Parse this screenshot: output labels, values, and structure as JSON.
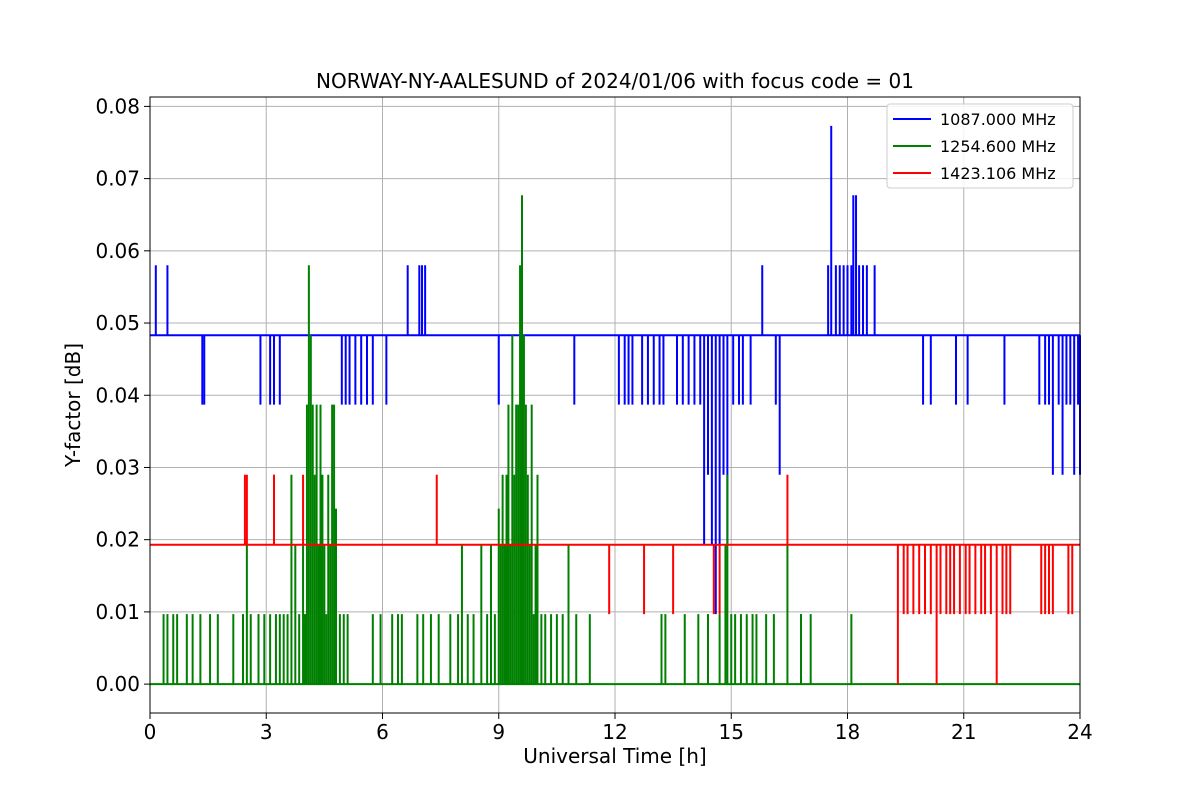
{
  "chart_data": {
    "type": "line",
    "title": "NORWAY-NY-AALESUND of 2024/01/06 with focus code = 01",
    "xlabel": "Universal Time [h]",
    "ylabel": "Y-factor [dB]",
    "xlim": [
      0,
      24
    ],
    "ylim": [
      -0.004,
      0.0813
    ],
    "xticks": [
      0,
      3,
      6,
      9,
      12,
      15,
      18,
      21,
      24
    ],
    "xtick_labels": [
      "0",
      "3",
      "6",
      "9",
      "12",
      "15",
      "18",
      "21",
      "24"
    ],
    "yticks": [
      0.0,
      0.01,
      0.02,
      0.03,
      0.04,
      0.05,
      0.06,
      0.07,
      0.08
    ],
    "ytick_labels": [
      "0.00",
      "0.01",
      "0.02",
      "0.03",
      "0.04",
      "0.05",
      "0.06",
      "0.07",
      "0.08"
    ],
    "grid": true,
    "legend_position": "top-right",
    "series": [
      {
        "name": "1087.000 MHz",
        "color": "#0000ff",
        "baseline": 0.0483,
        "spikes": [
          [
            0.15,
            0.058
          ],
          [
            0.45,
            0.058
          ],
          [
            1.35,
            0.0387
          ],
          [
            1.4,
            0.0387
          ],
          [
            2.85,
            0.0387
          ],
          [
            3.1,
            0.0387
          ],
          [
            3.2,
            0.0387
          ],
          [
            3.35,
            0.0387
          ],
          [
            4.95,
            0.0387
          ],
          [
            5.05,
            0.0387
          ],
          [
            5.15,
            0.0387
          ],
          [
            5.3,
            0.0387
          ],
          [
            5.45,
            0.0387
          ],
          [
            5.6,
            0.0387
          ],
          [
            5.75,
            0.0387
          ],
          [
            6.1,
            0.0387
          ],
          [
            6.65,
            0.058
          ],
          [
            6.95,
            0.058
          ],
          [
            7.02,
            0.058
          ],
          [
            7.1,
            0.058
          ],
          [
            9.0,
            0.0387
          ],
          [
            10.95,
            0.0387
          ],
          [
            12.1,
            0.0387
          ],
          [
            12.25,
            0.0387
          ],
          [
            12.35,
            0.0387
          ],
          [
            12.45,
            0.0387
          ],
          [
            12.7,
            0.0387
          ],
          [
            12.85,
            0.0387
          ],
          [
            13.0,
            0.0387
          ],
          [
            13.15,
            0.0387
          ],
          [
            13.25,
            0.0387
          ],
          [
            13.6,
            0.0387
          ],
          [
            13.75,
            0.0387
          ],
          [
            13.9,
            0.0387
          ],
          [
            14.05,
            0.0387
          ],
          [
            14.2,
            0.0387
          ],
          [
            14.3,
            0.0193
          ],
          [
            14.4,
            0.029
          ],
          [
            14.5,
            0.0193
          ],
          [
            14.6,
            0.0097
          ],
          [
            14.7,
            0.0193
          ],
          [
            14.8,
            0.029
          ],
          [
            14.9,
            0.0193
          ],
          [
            15.05,
            0.0387
          ],
          [
            15.2,
            0.0387
          ],
          [
            15.3,
            0.0387
          ],
          [
            15.5,
            0.0387
          ],
          [
            15.8,
            0.058
          ],
          [
            16.15,
            0.0387
          ],
          [
            16.25,
            0.029
          ],
          [
            17.5,
            0.058
          ],
          [
            17.58,
            0.0773
          ],
          [
            17.7,
            0.058
          ],
          [
            17.8,
            0.058
          ],
          [
            17.9,
            0.058
          ],
          [
            18.0,
            0.058
          ],
          [
            18.1,
            0.058
          ],
          [
            18.15,
            0.0677
          ],
          [
            18.22,
            0.0677
          ],
          [
            18.3,
            0.058
          ],
          [
            18.4,
            0.058
          ],
          [
            18.5,
            0.058
          ],
          [
            18.7,
            0.058
          ],
          [
            19.95,
            0.0387
          ],
          [
            20.15,
            0.0387
          ],
          [
            20.8,
            0.0387
          ],
          [
            21.1,
            0.0387
          ],
          [
            22.05,
            0.0387
          ],
          [
            22.95,
            0.0387
          ],
          [
            23.1,
            0.0387
          ],
          [
            23.2,
            0.0387
          ],
          [
            23.3,
            0.029
          ],
          [
            23.45,
            0.0387
          ],
          [
            23.55,
            0.029
          ],
          [
            23.65,
            0.0387
          ],
          [
            23.75,
            0.0387
          ],
          [
            23.85,
            0.029
          ],
          [
            23.95,
            0.0387
          ],
          [
            24.0,
            0.029
          ]
        ]
      },
      {
        "name": "1254.600 MHz",
        "color": "#008000",
        "baseline": 0.0,
        "spikes": [
          [
            0.35,
            0.0097
          ],
          [
            0.45,
            0.0097
          ],
          [
            0.6,
            0.0097
          ],
          [
            0.7,
            0.0097
          ],
          [
            0.95,
            0.0097
          ],
          [
            1.1,
            0.0097
          ],
          [
            1.3,
            0.0097
          ],
          [
            1.55,
            0.0097
          ],
          [
            1.75,
            0.0097
          ],
          [
            2.15,
            0.0097
          ],
          [
            2.4,
            0.0097
          ],
          [
            2.5,
            0.0193
          ],
          [
            2.6,
            0.0097
          ],
          [
            2.8,
            0.0097
          ],
          [
            2.95,
            0.0097
          ],
          [
            3.1,
            0.0097
          ],
          [
            3.25,
            0.0097
          ],
          [
            3.35,
            0.0097
          ],
          [
            3.45,
            0.0097
          ],
          [
            3.55,
            0.0097
          ],
          [
            3.65,
            0.029
          ],
          [
            3.75,
            0.0193
          ],
          [
            3.85,
            0.0097
          ],
          [
            3.95,
            0.0193
          ],
          [
            4.0,
            0.0097
          ],
          [
            4.05,
            0.0387
          ],
          [
            4.1,
            0.058
          ],
          [
            4.15,
            0.0483
          ],
          [
            4.2,
            0.0387
          ],
          [
            4.25,
            0.029
          ],
          [
            4.3,
            0.0387
          ],
          [
            4.35,
            0.0193
          ],
          [
            4.4,
            0.0387
          ],
          [
            4.45,
            0.029
          ],
          [
            4.5,
            0.0193
          ],
          [
            4.55,
            0.0097
          ],
          [
            4.6,
            0.029
          ],
          [
            4.65,
            0.0193
          ],
          [
            4.7,
            0.0387
          ],
          [
            4.75,
            0.0387
          ],
          [
            4.8,
            0.0243
          ],
          [
            4.9,
            0.0097
          ],
          [
            5.0,
            0.0097
          ],
          [
            5.1,
            0.0097
          ],
          [
            5.75,
            0.0097
          ],
          [
            5.95,
            0.0097
          ],
          [
            6.25,
            0.0097
          ],
          [
            6.4,
            0.0097
          ],
          [
            6.5,
            0.0097
          ],
          [
            6.9,
            0.0097
          ],
          [
            7.05,
            0.0097
          ],
          [
            7.25,
            0.0097
          ],
          [
            7.45,
            0.0097
          ],
          [
            7.75,
            0.0097
          ],
          [
            7.95,
            0.0097
          ],
          [
            8.05,
            0.0193
          ],
          [
            8.2,
            0.0097
          ],
          [
            8.35,
            0.0097
          ],
          [
            8.55,
            0.0193
          ],
          [
            8.7,
            0.0097
          ],
          [
            8.8,
            0.0193
          ],
          [
            8.9,
            0.0097
          ],
          [
            9.0,
            0.0243
          ],
          [
            9.05,
            0.0193
          ],
          [
            9.1,
            0.029
          ],
          [
            9.15,
            0.0193
          ],
          [
            9.2,
            0.029
          ],
          [
            9.25,
            0.0387
          ],
          [
            9.3,
            0.0193
          ],
          [
            9.35,
            0.0483
          ],
          [
            9.4,
            0.029
          ],
          [
            9.45,
            0.0387
          ],
          [
            9.5,
            0.0387
          ],
          [
            9.55,
            0.058
          ],
          [
            9.6,
            0.0677
          ],
          [
            9.65,
            0.0483
          ],
          [
            9.7,
            0.0387
          ],
          [
            9.75,
            0.029
          ],
          [
            9.8,
            0.0193
          ],
          [
            9.85,
            0.0387
          ],
          [
            9.9,
            0.0097
          ],
          [
            9.95,
            0.0193
          ],
          [
            10.0,
            0.029
          ],
          [
            10.1,
            0.0097
          ],
          [
            10.2,
            0.0097
          ],
          [
            10.35,
            0.0097
          ],
          [
            10.5,
            0.0097
          ],
          [
            10.65,
            0.0097
          ],
          [
            10.8,
            0.0193
          ],
          [
            11.0,
            0.0097
          ],
          [
            11.35,
            0.0097
          ],
          [
            13.2,
            0.0097
          ],
          [
            13.3,
            0.0097
          ],
          [
            13.8,
            0.0097
          ],
          [
            14.15,
            0.0097
          ],
          [
            14.4,
            0.0097
          ],
          [
            14.7,
            0.0097
          ],
          [
            14.85,
            0.0193
          ],
          [
            14.9,
            0.029
          ],
          [
            15.0,
            0.0097
          ],
          [
            15.1,
            0.0097
          ],
          [
            15.25,
            0.0097
          ],
          [
            15.4,
            0.0097
          ],
          [
            15.55,
            0.0097
          ],
          [
            15.65,
            0.0097
          ],
          [
            15.9,
            0.0097
          ],
          [
            16.1,
            0.0097
          ],
          [
            16.45,
            0.0193
          ],
          [
            16.8,
            0.0097
          ],
          [
            17.05,
            0.0097
          ],
          [
            18.1,
            0.0097
          ]
        ]
      },
      {
        "name": "1423.106 MHz",
        "color": "#ff0000",
        "baseline": 0.0193,
        "spikes": [
          [
            2.45,
            0.029
          ],
          [
            2.5,
            0.029
          ],
          [
            3.2,
            0.029
          ],
          [
            3.95,
            0.029
          ],
          [
            7.4,
            0.029
          ],
          [
            9.0,
            0.0193
          ],
          [
            11.85,
            0.0097
          ],
          [
            12.75,
            0.0097
          ],
          [
            13.5,
            0.0097
          ],
          [
            14.55,
            0.0097
          ],
          [
            14.7,
            0.0097
          ],
          [
            16.45,
            0.029
          ],
          [
            19.3,
            0.0
          ],
          [
            19.45,
            0.0097
          ],
          [
            19.55,
            0.0097
          ],
          [
            19.7,
            0.0097
          ],
          [
            19.85,
            0.0097
          ],
          [
            20.0,
            0.0097
          ],
          [
            20.15,
            0.0097
          ],
          [
            20.3,
            0.0
          ],
          [
            20.4,
            0.0097
          ],
          [
            20.55,
            0.0097
          ],
          [
            20.65,
            0.0097
          ],
          [
            20.75,
            0.0097
          ],
          [
            20.9,
            0.0097
          ],
          [
            21.05,
            0.0097
          ],
          [
            21.15,
            0.0097
          ],
          [
            21.3,
            0.0097
          ],
          [
            21.45,
            0.0097
          ],
          [
            21.55,
            0.0097
          ],
          [
            21.7,
            0.0097
          ],
          [
            21.85,
            0.0
          ],
          [
            22.0,
            0.0097
          ],
          [
            22.1,
            0.0097
          ],
          [
            22.2,
            0.0097
          ],
          [
            23.0,
            0.0097
          ],
          [
            23.1,
            0.0097
          ],
          [
            23.2,
            0.0097
          ],
          [
            23.3,
            0.0097
          ],
          [
            23.7,
            0.0097
          ],
          [
            23.8,
            0.0097
          ]
        ]
      }
    ]
  }
}
